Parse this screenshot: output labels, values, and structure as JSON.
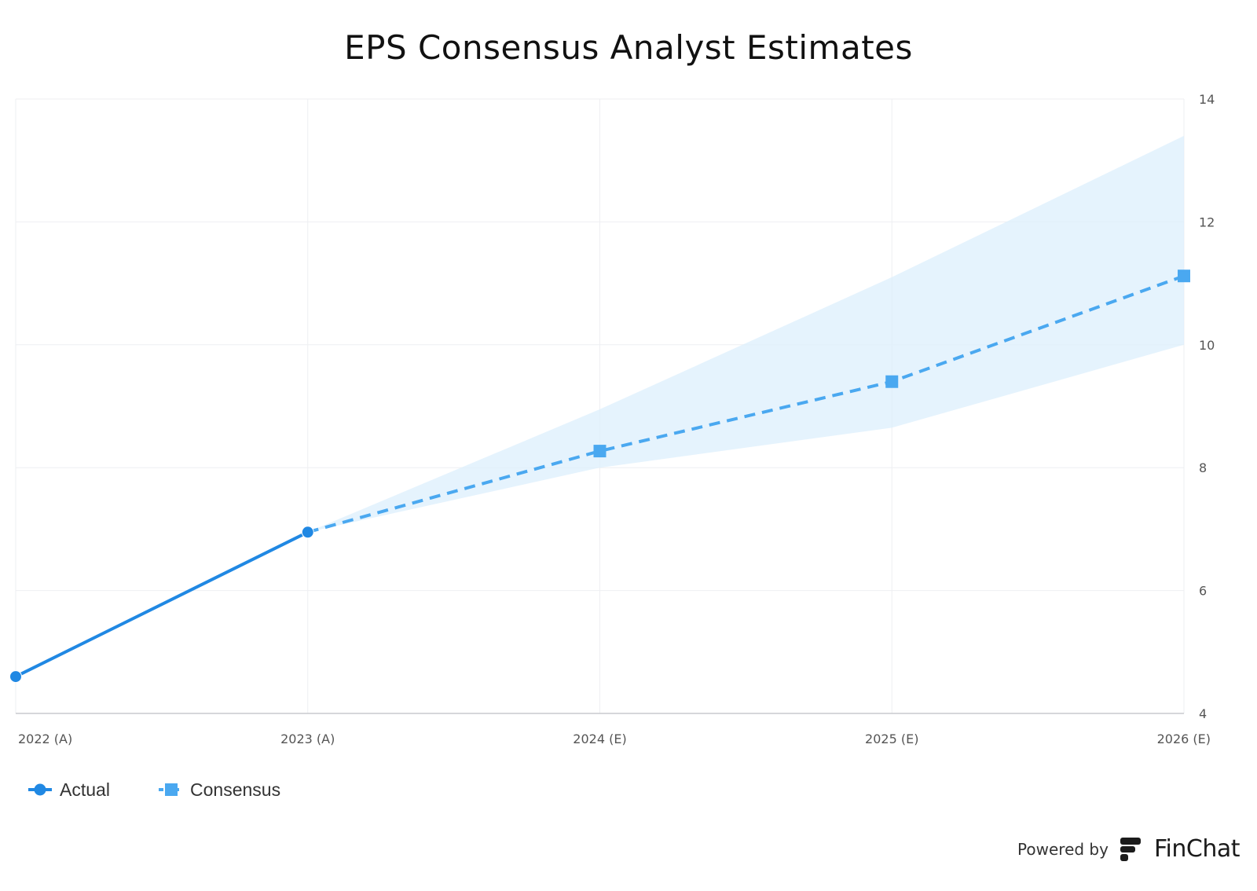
{
  "chart_data": {
    "type": "line",
    "title": "EPS Consensus Analyst Estimates",
    "xlabel": "",
    "ylabel": "",
    "categories": [
      "2022 (A)",
      "2023 (A)",
      "2024 (E)",
      "2025 (E)",
      "2026 (E)"
    ],
    "ylim": [
      4,
      14
    ],
    "yticks": [
      4,
      6,
      8,
      10,
      12,
      14
    ],
    "y_axis_position": "right",
    "grid": true,
    "legend_position": "bottom-left",
    "series": [
      {
        "name": "Actual",
        "style": "solid",
        "marker": "circle",
        "color": "#2088e3",
        "values": [
          4.6,
          6.95,
          null,
          null,
          null
        ]
      },
      {
        "name": "Consensus",
        "style": "dashed",
        "marker": "square",
        "color": "#4aa8f0",
        "values": [
          null,
          6.95,
          8.27,
          9.4,
          11.12
        ]
      }
    ],
    "range_band": {
      "color": "#dceffc",
      "high": [
        null,
        6.95,
        8.95,
        11.1,
        13.4
      ],
      "low": [
        null,
        6.95,
        8.0,
        8.65,
        10.0
      ]
    }
  },
  "footer": {
    "powered_by": "Powered by",
    "brand": "FinChat"
  }
}
